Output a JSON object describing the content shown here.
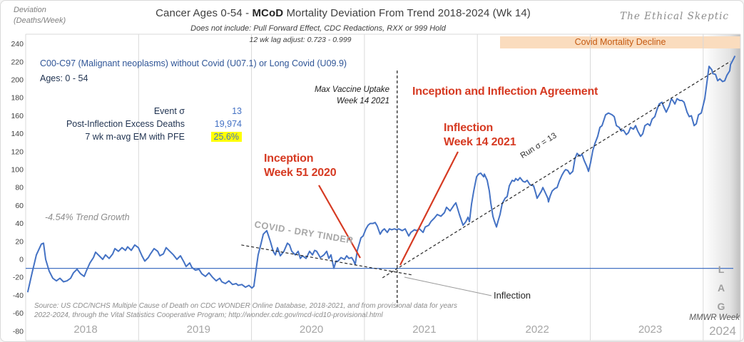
{
  "colors": {
    "series_blue": "#4472C4",
    "baseline_blue": "#4472C4",
    "grid": "#D9D9D9",
    "red": "#D63A22",
    "band_bg": "#FADCBE",
    "band_text": "#C55A11",
    "highlight_yellow": "#FFFF00",
    "year_label": "#A6A6A6",
    "tick_label": "#404040"
  },
  "header": {
    "y_axis_caption_line1": "Deviation",
    "y_axis_caption_line2": "(Deaths/Week)",
    "title_part1": "Cancer  Ages 0-54 - ",
    "title_bold": "MCoD",
    "title_part2": " Mortality Deviation From Trend  2018-2024 (Wk 14)",
    "subtitle": "Does not include: Pull Forward Effect,  CDC Redactions, RXX or 999 Hold",
    "lag_adjust": "12 wk lag adjust: 0.723 - 0.999",
    "brand": "The Ethical Skeptic"
  },
  "info_block": {
    "series_code_label": "C00-C97 (Malignant neoplasms) without Covid (U07.1) or Long Covid (U09.9)",
    "ages_label": "Ages: 0 - 54",
    "stats": [
      {
        "label": "Event σ",
        "value": "13"
      },
      {
        "label": "Post-Inflection Excess Deaths",
        "value": "19,974"
      },
      {
        "label": "7 wk m-avg EM  with PFE",
        "value": "25.6%"
      }
    ]
  },
  "annotations": {
    "trend_growth": "-4.54% Trend Growth",
    "dry_tinder": "COVID - DRY TINDER",
    "max_vaccine_line1": "Max Vaccine Uptake",
    "max_vaccine_line2": "Week 14 2021",
    "agreement": "Inception and Inflection Agreement",
    "inflection_line1": "Inflection",
    "inflection_line2": "Week 14 2021",
    "inception_line1": "Inception",
    "inception_line2": "Week 51 2020",
    "run_sigma": "Run σ = 13",
    "inflection_marker": "Inflection",
    "covid_band": "Covid Mortality Decline",
    "lag_letters": [
      "L",
      "A",
      "G"
    ],
    "mmwr": "MMWR Week"
  },
  "source": {
    "line1": "Source: US CDC/NCHS Multiple Cause of Death on CDC WONDER Online Database, 2018-2021, and from provisional data for years",
    "line2": "2022-2024, through the Vital Statistics Cooperative Program; http://wonder.cdc.gov/mcd-icd10-provisional.html"
  },
  "chart_data": {
    "type": "line",
    "title": "Cancer Ages 0-54 - MCoD Mortality Deviation From Trend 2018-2024 (Wk 14)",
    "ylabel": "Deviation (Deaths/Week)",
    "xlabel": "MMWR Week",
    "x_years": [
      2018,
      2019,
      2020,
      2021,
      2022,
      2023,
      2024
    ],
    "xlim": [
      2018.0,
      2024.37
    ],
    "ylim": [
      -80,
      240
    ],
    "ytick_step": 20,
    "grid": "vertical-year-gridlines-only",
    "legend": "none",
    "baseline_y": -10,
    "trendlines": [
      {
        "name": "pre-covid-declining-trend",
        "label": "-4.54% Trend Growth",
        "x1": 2019.91,
        "y1": 16,
        "x2": 2021.43,
        "y2": -17.5
      },
      {
        "name": "post-inflection-rising-trend",
        "label": "Run σ = 13",
        "x1": 2021.16,
        "y1": -20.5,
        "x2": 2024.24,
        "y2": 220.5
      }
    ],
    "events": [
      {
        "name": "inception",
        "label": "Inception Week 51 2020",
        "x": 2020.98
      },
      {
        "name": "inflection",
        "label": "Inflection Week 14 2021",
        "x": 2021.27
      },
      {
        "name": "max-vaccine-uptake",
        "label": "Max Vaccine Uptake Week 14 2021",
        "x": 2021.29
      }
    ],
    "series": [
      {
        "name": "C00-C97 weekly mortality deviation from trend",
        "color": "#4472C4"
      }
    ],
    "points": [
      [
        2018.019,
        -36
      ],
      [
        2018.057,
        -15
      ],
      [
        2018.095,
        5
      ],
      [
        2018.139,
        17
      ],
      [
        2018.158,
        18
      ],
      [
        2018.177,
        0
      ],
      [
        2018.208,
        -13
      ],
      [
        2018.24,
        -21
      ],
      [
        2018.272,
        -24
      ],
      [
        2018.303,
        -21
      ],
      [
        2018.335,
        -25
      ],
      [
        2018.366,
        -24
      ],
      [
        2018.398,
        -21
      ],
      [
        2018.423,
        -15
      ],
      [
        2018.455,
        -11
      ],
      [
        2018.486,
        -16
      ],
      [
        2018.518,
        -19
      ],
      [
        2018.537,
        -13
      ],
      [
        2018.569,
        -4
      ],
      [
        2018.6,
        2
      ],
      [
        2018.619,
        8
      ],
      [
        2018.651,
        4
      ],
      [
        2018.682,
        0
      ],
      [
        2018.707,
        5
      ],
      [
        2018.739,
        1
      ],
      [
        2018.771,
        6
      ],
      [
        2018.79,
        12
      ],
      [
        2018.821,
        9
      ],
      [
        2018.853,
        13
      ],
      [
        2018.884,
        10
      ],
      [
        2018.903,
        14
      ],
      [
        2018.935,
        10
      ],
      [
        2018.966,
        16
      ],
      [
        2018.998,
        13
      ],
      [
        2019.03,
        4
      ],
      [
        2019.055,
        -2
      ],
      [
        2019.086,
        2
      ],
      [
        2019.105,
        6
      ],
      [
        2019.137,
        12
      ],
      [
        2019.169,
        9
      ],
      [
        2019.188,
        4
      ],
      [
        2019.219,
        6
      ],
      [
        2019.244,
        13
      ],
      [
        2019.276,
        9
      ],
      [
        2019.308,
        5
      ],
      [
        2019.339,
        0
      ],
      [
        2019.371,
        4
      ],
      [
        2019.402,
        -3
      ],
      [
        2019.421,
        -8
      ],
      [
        2019.453,
        -4
      ],
      [
        2019.472,
        -9
      ],
      [
        2019.503,
        -12
      ],
      [
        2019.535,
        -11
      ],
      [
        2019.56,
        -16
      ],
      [
        2019.592,
        -19
      ],
      [
        2019.623,
        -15
      ],
      [
        2019.655,
        -20
      ],
      [
        2019.687,
        -24
      ],
      [
        2019.718,
        -21
      ],
      [
        2019.737,
        -25
      ],
      [
        2019.769,
        -27
      ],
      [
        2019.8,
        -24
      ],
      [
        2019.832,
        -28
      ],
      [
        2019.864,
        -27
      ],
      [
        2019.882,
        -29
      ],
      [
        2019.914,
        -28
      ],
      [
        2019.946,
        -31
      ],
      [
        2019.977,
        -29
      ],
      [
        2020.003,
        -32
      ],
      [
        2020.021,
        -30
      ],
      [
        2020.04,
        -12
      ],
      [
        2020.059,
        5
      ],
      [
        2020.085,
        18
      ],
      [
        2020.104,
        28
      ],
      [
        2020.135,
        32
      ],
      [
        2020.167,
        20
      ],
      [
        2020.192,
        9
      ],
      [
        2020.211,
        5
      ],
      [
        2020.23,
        13
      ],
      [
        2020.255,
        4
      ],
      [
        2020.287,
        9
      ],
      [
        2020.318,
        18
      ],
      [
        2020.337,
        16
      ],
      [
        2020.356,
        9
      ],
      [
        2020.388,
        5
      ],
      [
        2020.413,
        9
      ],
      [
        2020.432,
        1
      ],
      [
        2020.451,
        4
      ],
      [
        2020.483,
        1
      ],
      [
        2020.514,
        9
      ],
      [
        2020.54,
        5
      ],
      [
        2020.559,
        10
      ],
      [
        2020.577,
        9
      ],
      [
        2020.609,
        2
      ],
      [
        2020.641,
        5
      ],
      [
        2020.666,
        9
      ],
      [
        2020.685,
        1
      ],
      [
        2020.704,
        5
      ],
      [
        2020.729,
        -10
      ],
      [
        2020.748,
        -2
      ],
      [
        2020.767,
        -2
      ],
      [
        2020.792,
        2
      ],
      [
        2020.824,
        0
      ],
      [
        2020.843,
        4
      ],
      [
        2020.862,
        1
      ],
      [
        2020.887,
        2
      ],
      [
        2020.906,
        -2
      ],
      [
        2020.918,
        -6
      ],
      [
        2020.937,
        10
      ],
      [
        2020.956,
        18
      ],
      [
        2020.969,
        24
      ],
      [
        2020.988,
        26
      ],
      [
        2021.013,
        34
      ],
      [
        2021.032,
        38
      ],
      [
        2021.051,
        40
      ],
      [
        2021.076,
        40
      ],
      [
        2021.095,
        41
      ],
      [
        2021.114,
        37
      ],
      [
        2021.139,
        28
      ],
      [
        2021.158,
        32
      ],
      [
        2021.177,
        34
      ],
      [
        2021.203,
        30
      ],
      [
        2021.222,
        34
      ],
      [
        2021.241,
        33
      ],
      [
        2021.266,
        34
      ],
      [
        2021.285,
        33
      ],
      [
        2021.304,
        34
      ],
      [
        2021.335,
        32
      ],
      [
        2021.361,
        34
      ],
      [
        2021.392,
        26
      ],
      [
        2021.411,
        30
      ],
      [
        2021.443,
        33
      ],
      [
        2021.462,
        32
      ],
      [
        2021.487,
        34
      ],
      [
        2021.519,
        30
      ],
      [
        2021.538,
        36
      ],
      [
        2021.569,
        38
      ],
      [
        2021.588,
        42
      ],
      [
        2021.62,
        46
      ],
      [
        2021.645,
        50
      ],
      [
        2021.677,
        48
      ],
      [
        2021.708,
        52
      ],
      [
        2021.727,
        58
      ],
      [
        2021.759,
        54
      ],
      [
        2021.791,
        60
      ],
      [
        2021.81,
        63
      ],
      [
        2021.841,
        50
      ],
      [
        2021.873,
        38
      ],
      [
        2021.898,
        42
      ],
      [
        2021.917,
        47
      ],
      [
        2021.93,
        42
      ],
      [
        2021.949,
        62
      ],
      [
        2021.968,
        76
      ],
      [
        2021.993,
        92
      ],
      [
        2022.011,
        95
      ],
      [
        2022.03,
        96
      ],
      [
        2022.056,
        92
      ],
      [
        2022.062,
        95
      ],
      [
        2022.087,
        88
      ],
      [
        2022.106,
        76
      ],
      [
        2022.119,
        63
      ],
      [
        2022.138,
        48
      ],
      [
        2022.15,
        43
      ],
      [
        2022.169,
        36
      ],
      [
        2022.182,
        42
      ],
      [
        2022.201,
        50
      ],
      [
        2022.22,
        62
      ],
      [
        2022.245,
        68
      ],
      [
        2022.264,
        70
      ],
      [
        2022.283,
        82
      ],
      [
        2022.308,
        88
      ],
      [
        2022.327,
        87
      ],
      [
        2022.34,
        90
      ],
      [
        2022.359,
        88
      ],
      [
        2022.378,
        91
      ],
      [
        2022.403,
        87
      ],
      [
        2022.422,
        86
      ],
      [
        2022.441,
        88
      ],
      [
        2022.466,
        83
      ],
      [
        2022.498,
        82
      ],
      [
        2022.517,
        74
      ],
      [
        2022.529,
        68
      ],
      [
        2022.548,
        72
      ],
      [
        2022.567,
        76
      ],
      [
        2022.58,
        80
      ],
      [
        2022.599,
        75
      ],
      [
        2022.624,
        68
      ],
      [
        2022.63,
        64
      ],
      [
        2022.643,
        70
      ],
      [
        2022.662,
        76
      ],
      [
        2022.687,
        79
      ],
      [
        2022.706,
        80
      ],
      [
        2022.725,
        87
      ],
      [
        2022.75,
        94
      ],
      [
        2022.769,
        98
      ],
      [
        2022.782,
        100
      ],
      [
        2022.801,
        99
      ],
      [
        2022.82,
        95
      ],
      [
        2022.845,
        98
      ],
      [
        2022.851,
        102
      ],
      [
        2022.864,
        112
      ],
      [
        2022.883,
        118
      ],
      [
        2022.908,
        115
      ],
      [
        2022.927,
        117
      ],
      [
        2022.946,
        110
      ],
      [
        2022.971,
        103
      ],
      [
        2022.984,
        98
      ],
      [
        2023.003,
        108
      ],
      [
        2023.022,
        121
      ],
      [
        2023.041,
        129
      ],
      [
        2023.066,
        137
      ],
      [
        2023.085,
        147
      ],
      [
        2023.104,
        149
      ],
      [
        2023.136,
        161
      ],
      [
        2023.161,
        163
      ],
      [
        2023.193,
        161
      ],
      [
        2023.212,
        159
      ],
      [
        2023.231,
        149
      ],
      [
        2023.256,
        147
      ],
      [
        2023.275,
        143
      ],
      [
        2023.294,
        144
      ],
      [
        2023.319,
        139
      ],
      [
        2023.338,
        141
      ],
      [
        2023.357,
        147
      ],
      [
        2023.382,
        145
      ],
      [
        2023.401,
        149
      ],
      [
        2023.42,
        143
      ],
      [
        2023.446,
        137
      ],
      [
        2023.465,
        140
      ],
      [
        2023.484,
        149
      ],
      [
        2023.509,
        151
      ],
      [
        2023.528,
        149
      ],
      [
        2023.547,
        156
      ],
      [
        2023.572,
        159
      ],
      [
        2023.591,
        167
      ],
      [
        2023.61,
        173
      ],
      [
        2023.635,
        175
      ],
      [
        2023.654,
        169
      ],
      [
        2023.673,
        164
      ],
      [
        2023.699,
        171
      ],
      [
        2023.718,
        179
      ],
      [
        2023.73,
        177
      ],
      [
        2023.749,
        173
      ],
      [
        2023.768,
        179
      ],
      [
        2023.793,
        177
      ],
      [
        2023.812,
        177
      ],
      [
        2023.831,
        175
      ],
      [
        2023.857,
        164
      ],
      [
        2023.876,
        159
      ],
      [
        2023.895,
        160
      ],
      [
        2023.92,
        149
      ],
      [
        2023.939,
        151
      ],
      [
        2023.958,
        161
      ],
      [
        2023.983,
        163
      ],
      [
        2024.014,
        179
      ],
      [
        2024.033,
        197
      ],
      [
        2024.052,
        215
      ],
      [
        2024.077,
        211
      ],
      [
        2024.084,
        207
      ],
      [
        2024.109,
        206
      ],
      [
        2024.128,
        199
      ],
      [
        2024.147,
        201
      ],
      [
        2024.172,
        198
      ],
      [
        2024.191,
        199
      ],
      [
        2024.21,
        205
      ],
      [
        2024.235,
        210
      ],
      [
        2024.242,
        217
      ],
      [
        2024.267,
        223
      ],
      [
        2024.279,
        226
      ]
    ]
  }
}
